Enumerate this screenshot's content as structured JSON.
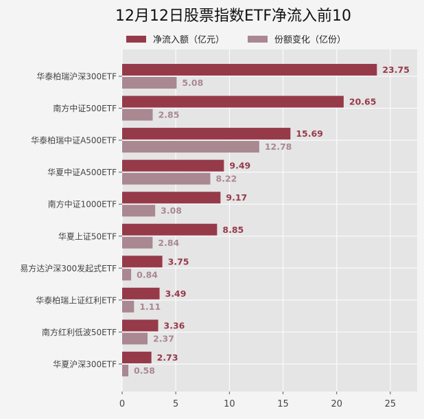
{
  "chart_data": {
    "type": "bar",
    "orientation": "horizontal",
    "title": "12月12日股票指数ETF净流入前10",
    "xlabel": "",
    "ylabel": "",
    "xlim": [
      0,
      27.5
    ],
    "xticks": [
      0,
      5,
      10,
      15,
      20,
      25
    ],
    "grid": true,
    "legend_placement": "top-center",
    "categories": [
      "华泰柏瑞沪深300ETF",
      "南方中证500ETF",
      "华泰柏瑞中证A500ETF",
      "华夏中证A500ETF",
      "南方中证1000ETF",
      "华夏上证50ETF",
      "易方达沪深300发起式ETF",
      "华泰柏瑞上证红利ETF",
      "南方红利低波50ETF",
      "华夏沪深300ETF"
    ],
    "series": [
      {
        "name": "净流入额（亿元）",
        "color": "#963a4a",
        "values": [
          23.75,
          20.65,
          15.69,
          9.49,
          9.17,
          8.85,
          3.75,
          3.49,
          3.36,
          2.73
        ]
      },
      {
        "name": "份额变化（亿份）",
        "color": "#a98891",
        "values": [
          5.08,
          2.85,
          12.78,
          8.22,
          3.08,
          2.84,
          0.84,
          1.11,
          2.37,
          0.58
        ]
      }
    ]
  }
}
